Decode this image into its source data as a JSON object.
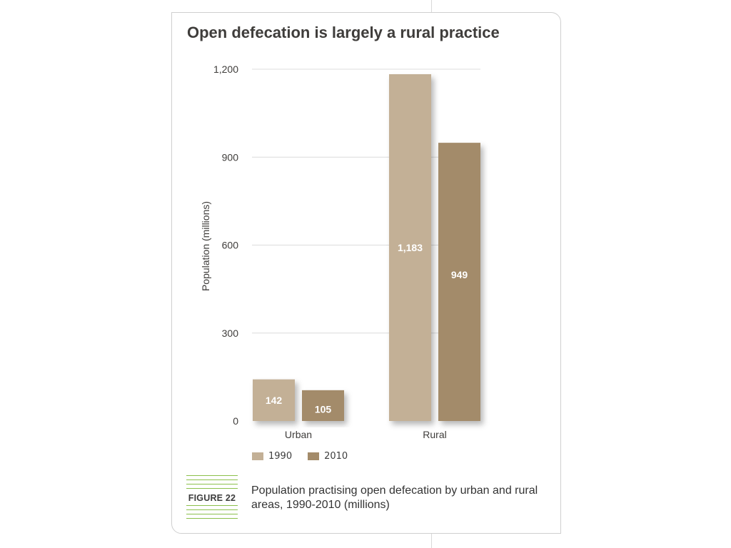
{
  "chart_data": {
    "type": "bar",
    "title": "Open defecation is largely a rural practice",
    "xlabel": "",
    "ylabel": "Population (millions)",
    "ylim": [
      0,
      1200
    ],
    "yticks": [
      0,
      300,
      600,
      900,
      1200
    ],
    "ytick_labels": [
      "0",
      "300",
      "600",
      "900",
      "1,200"
    ],
    "categories": [
      "Urban",
      "Rural"
    ],
    "series": [
      {
        "name": "1990",
        "values": [
          142,
          1183
        ],
        "labels": [
          "142",
          "1,183"
        ],
        "color": "#c3b096"
      },
      {
        "name": "2010",
        "values": [
          105,
          949
        ],
        "labels": [
          "105",
          "949"
        ],
        "color": "#a38b6a"
      }
    ],
    "grid": true,
    "legend_position": "bottom-left"
  },
  "figure": {
    "label": "FIGURE 22",
    "caption": "Population practising open defecation by urban and rural areas, 1990-2010 (millions)"
  },
  "colors": {
    "gridline": "#dcdcdc",
    "text": "#3f3d3b",
    "figure_stripe": "#8cc04b",
    "bar_label": "#ffffff"
  }
}
